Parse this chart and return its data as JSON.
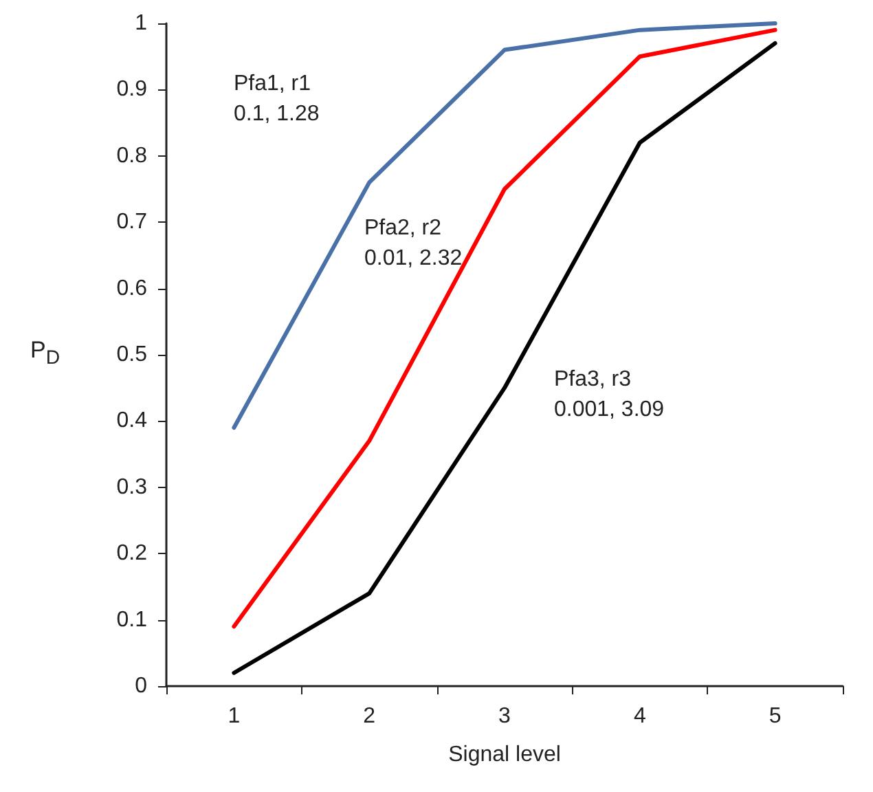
{
  "chart_data": {
    "type": "line",
    "xlabel": "Signal level",
    "ylabel": "P$_{D}$",
    "categories": [
      "1",
      "2",
      "3",
      "4",
      "5"
    ],
    "series": [
      {
        "color": "#4a70a8",
        "values": [
          0.39,
          0.76,
          0.96,
          0.99,
          1.0
        ]
      },
      {
        "color": "#ff0000",
        "values": [
          0.09,
          0.37,
          0.75,
          0.95,
          0.99
        ]
      },
      {
        "color": "#000000",
        "values": [
          0.02,
          0.14,
          0.45,
          0.82,
          0.97
        ]
      }
    ],
    "ylim": [
      0,
      1
    ],
    "yticks": [
      0,
      0.1,
      0.2,
      0.3,
      0.4,
      0.5,
      0.6,
      0.7,
      0.8,
      0.9,
      1
    ],
    "annotations": [
      "Pfa1, r1\n0.1, 1.28",
      "Pfa2, r2\n0.01, 2.32",
      "Pfa3, r3\n0.001, 3.09"
    ],
    "grid": false,
    "marker": "none",
    "line_style": "solid"
  }
}
